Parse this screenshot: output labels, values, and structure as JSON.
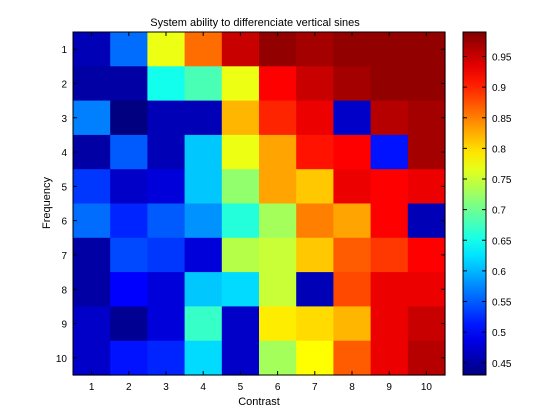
{
  "chart_data": {
    "type": "heatmap",
    "title": "System ability to differenciate vertical sines",
    "xlabel": "Contrast",
    "ylabel": "Frequency",
    "x_categories": [
      "1",
      "2",
      "3",
      "4",
      "5",
      "6",
      "7",
      "8",
      "9",
      "10"
    ],
    "y_categories": [
      "1",
      "2",
      "3",
      "4",
      "5",
      "6",
      "7",
      "8",
      "9",
      "10"
    ],
    "clim": [
      0.43,
      0.99
    ],
    "colormap": "jet",
    "colorbar_ticks": [
      "0.45",
      "0.5",
      "0.55",
      "0.6",
      "0.65",
      "0.7",
      "0.75",
      "0.8",
      "0.85",
      "0.9",
      "0.95"
    ],
    "grid": false,
    "values": [
      [
        0.46,
        0.56,
        0.77,
        0.86,
        0.95,
        0.98,
        0.97,
        0.98,
        0.98,
        0.98
      ],
      [
        0.45,
        0.45,
        0.65,
        0.68,
        0.77,
        0.92,
        0.95,
        0.97,
        0.98,
        0.98
      ],
      [
        0.57,
        0.43,
        0.46,
        0.46,
        0.82,
        0.9,
        0.93,
        0.47,
        0.96,
        0.97
      ],
      [
        0.45,
        0.55,
        0.46,
        0.61,
        0.77,
        0.83,
        0.91,
        0.92,
        0.51,
        0.97
      ],
      [
        0.53,
        0.47,
        0.48,
        0.61,
        0.72,
        0.83,
        0.81,
        0.93,
        0.92,
        0.93
      ],
      [
        0.56,
        0.52,
        0.55,
        0.58,
        0.66,
        0.73,
        0.85,
        0.83,
        0.92,
        0.46
      ],
      [
        0.45,
        0.54,
        0.53,
        0.48,
        0.74,
        0.75,
        0.81,
        0.87,
        0.89,
        0.92
      ],
      [
        0.45,
        0.5,
        0.48,
        0.61,
        0.62,
        0.75,
        0.46,
        0.88,
        0.93,
        0.93
      ],
      [
        0.47,
        0.44,
        0.48,
        0.67,
        0.47,
        0.79,
        0.8,
        0.82,
        0.93,
        0.95
      ],
      [
        0.47,
        0.51,
        0.52,
        0.62,
        0.47,
        0.73,
        0.78,
        0.87,
        0.93,
        0.96
      ]
    ]
  }
}
